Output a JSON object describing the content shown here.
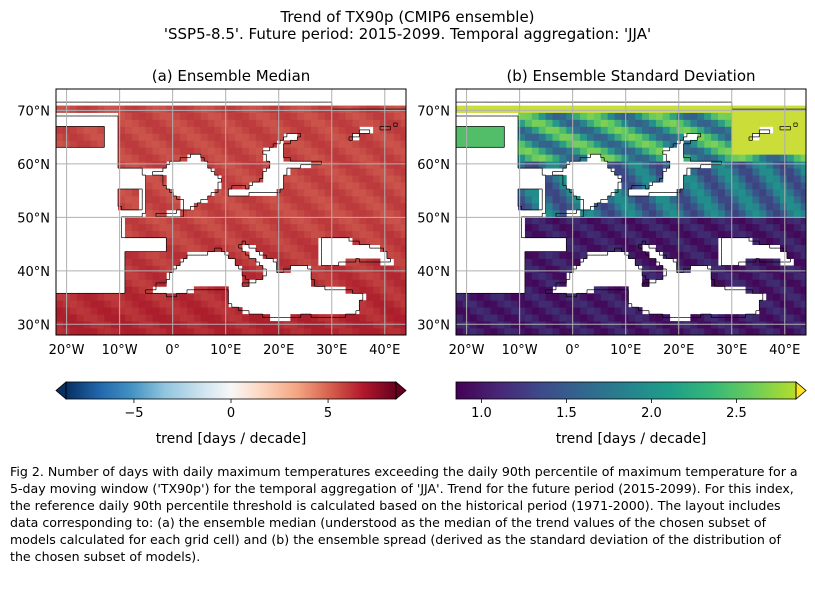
{
  "suptitle": {
    "line1": "Trend of TX90p (CMIP6 ensemble)",
    "line2": "'SSP5-8.5'. Future period: 2015-2099. Temporal aggregation: 'JJA'"
  },
  "chart_data": [
    {
      "type": "heatmap",
      "title": "(a) Ensemble Median",
      "xlabel": "",
      "ylabel": "",
      "x_ticks": [
        "20°W",
        "10°W",
        "0°",
        "10°E",
        "20°E",
        "30°E",
        "40°E"
      ],
      "x_tick_values": [
        -20,
        -10,
        0,
        10,
        20,
        30,
        40
      ],
      "y_ticks": [
        "30°N",
        "40°N",
        "50°N",
        "60°N",
        "70°N"
      ],
      "y_tick_values": [
        30,
        40,
        50,
        60,
        70
      ],
      "xlim": [
        -22,
        44
      ],
      "ylim": [
        28,
        74
      ],
      "grid": true,
      "colormap": "RdBu_r",
      "colorbar": {
        "label": "trend [days / decade]",
        "ticks": [
          "−5",
          "0",
          "5"
        ],
        "tick_values": [
          -5,
          0,
          5
        ],
        "range": [
          -8.5,
          8.5
        ],
        "extend": "both",
        "orientation": "horizontal"
      },
      "values_description_range": [
        4,
        8.5
      ]
    },
    {
      "type": "heatmap",
      "title": "(b) Ensemble Standard Deviation",
      "xlabel": "",
      "ylabel": "",
      "x_ticks": [
        "20°W",
        "10°W",
        "0°",
        "10°E",
        "20°E",
        "30°E",
        "40°E"
      ],
      "x_tick_values": [
        -20,
        -10,
        0,
        10,
        20,
        30,
        40
      ],
      "y_ticks": [
        "30°N",
        "40°N",
        "50°N",
        "60°N",
        "70°N"
      ],
      "y_tick_values": [
        30,
        40,
        50,
        60,
        70
      ],
      "xlim": [
        -22,
        44
      ],
      "ylim": [
        28,
        74
      ],
      "grid": true,
      "colormap": "viridis",
      "colorbar": {
        "label": "trend [days / decade]",
        "ticks": [
          "1.0",
          "1.5",
          "2.0",
          "2.5"
        ],
        "tick_values": [
          1.0,
          1.5,
          2.0,
          2.5
        ],
        "range": [
          0.85,
          2.85
        ],
        "extend": "max",
        "orientation": "horizontal"
      }
    }
  ],
  "caption": "Fig 2. Number of days with daily maximum temperatures exceeding the daily 90th percentile of maximum temperature for a 5-day moving window ('TX90p') for the temporal aggregation of 'JJA'. Trend for the future period (2015-2099). For this index, the reference daily 90th percentile threshold is calculated based on the historical period (1971-2000). The layout includes data corresponding to: (a) the ensemble median (understood as the median of the trend values of the chosen subset of models calculated for each grid cell) and (b) the ensemble spread (derived as the standard deviation of the distribution of the chosen subset of models)."
}
